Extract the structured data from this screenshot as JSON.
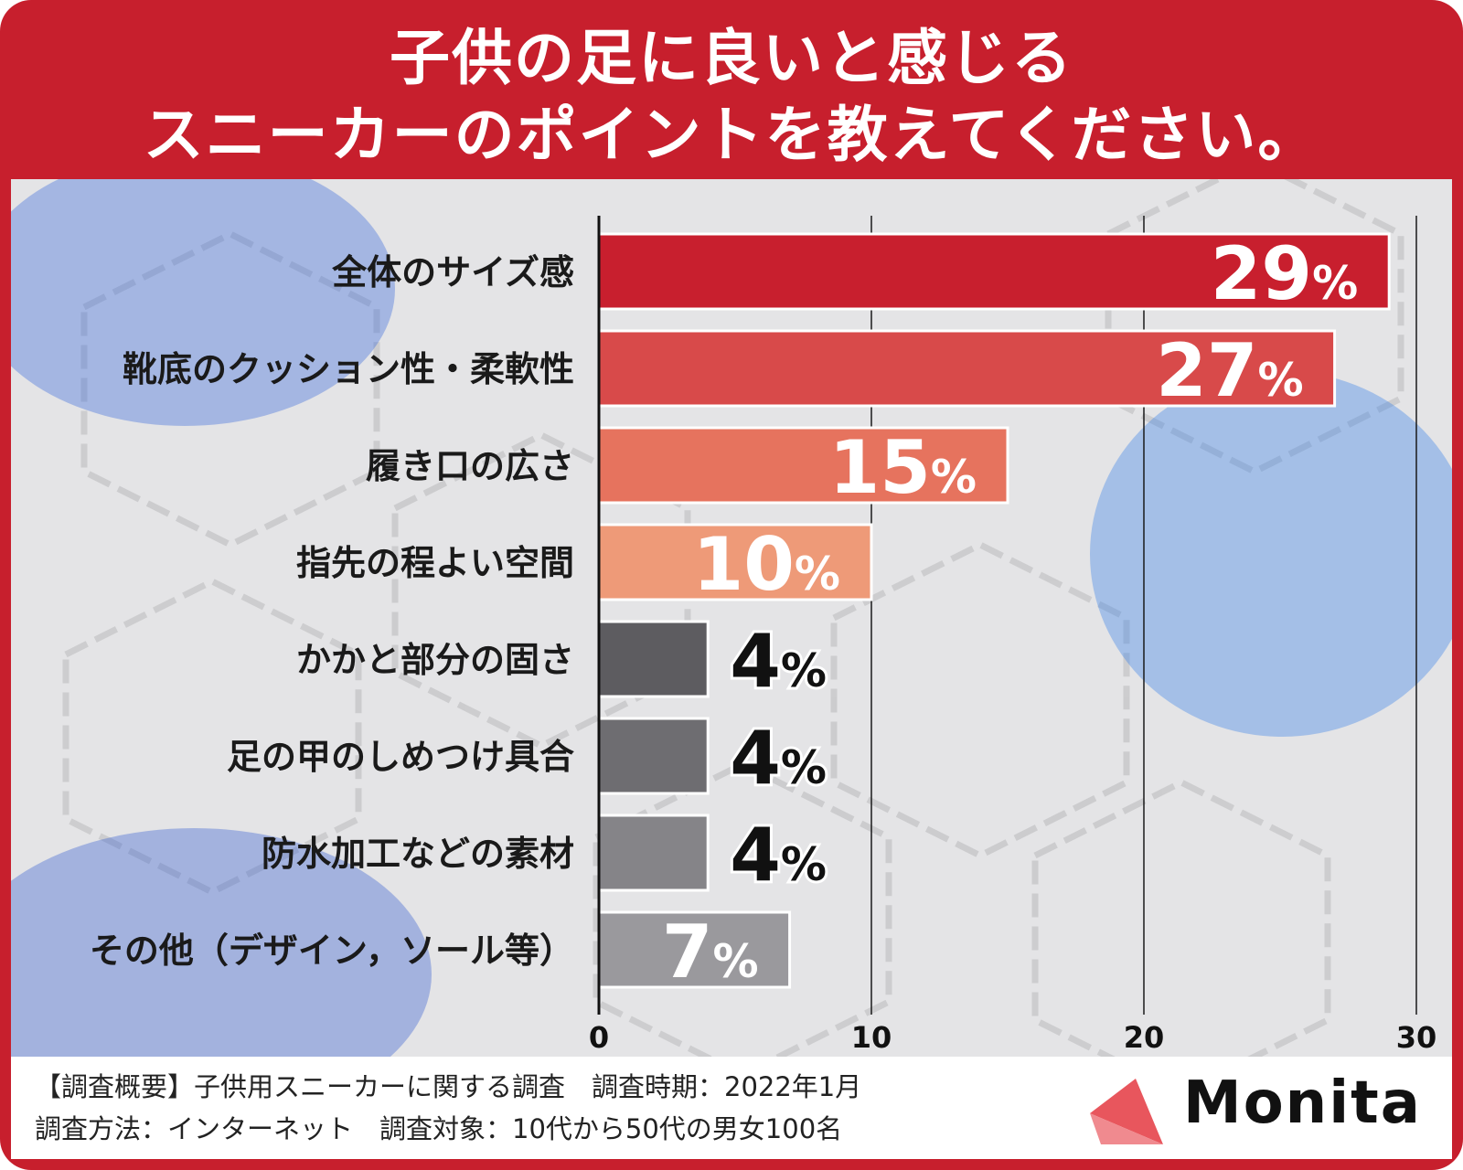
{
  "title": {
    "line1": "子供の足に良いと感じる",
    "line2": "スニーカーのポイントを教えてください。"
  },
  "chart_data": {
    "type": "bar",
    "orientation": "horizontal",
    "categories": [
      "全体のサイズ感",
      "靴底のクッション性・柔軟性",
      "履き口の広さ",
      "指先の程よい空間",
      "かかと部分の固さ",
      "足の甲のしめつけ具合",
      "防水加工などの素材",
      "その他（デザイン，ソール等）"
    ],
    "values": [
      29,
      27,
      15,
      10,
      4,
      4,
      4,
      7
    ],
    "value_labels": [
      "29",
      "27",
      "15",
      "10",
      "4",
      "4",
      "4",
      "7"
    ],
    "unit": "%",
    "colors": [
      "#c81f2e",
      "#d84a4a",
      "#e6735e",
      "#ee9a78",
      "#5d5c60",
      "#6e6d71",
      "#858488",
      "#9a999d"
    ],
    "xlim": [
      0,
      30
    ],
    "x_ticks": [
      0,
      10,
      20,
      30
    ],
    "grid": true
  },
  "footer": {
    "line1": "【調査概要】子供用スニーカーに関する調査　調査時期：2022年1月",
    "line2": "調査方法：インターネット　調査対象：10代から50代の男女100名"
  },
  "brand": {
    "name": "Monita",
    "accent": "#e8565d"
  }
}
